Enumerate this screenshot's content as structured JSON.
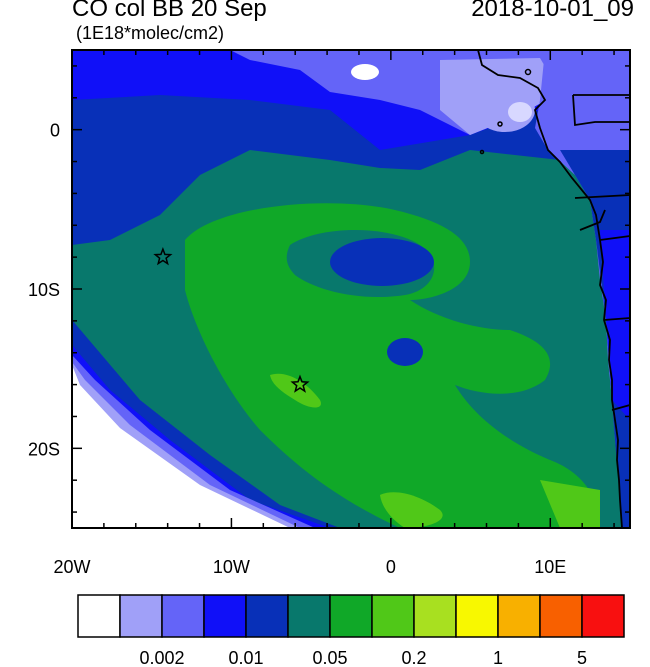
{
  "header": {
    "title": "CO col BB 20 Sep",
    "units": "(1E18*molec/cm2)",
    "timestamp": "2018-10-01_09"
  },
  "map": {
    "lon_range": [
      -20,
      15
    ],
    "lat_range": [
      -25,
      5
    ],
    "x_ticks": [
      {
        "lon": -20,
        "label": "20W"
      },
      {
        "lon": -10,
        "label": "10W"
      },
      {
        "lon": 0,
        "label": "0"
      },
      {
        "lon": 10,
        "label": "10E"
      }
    ],
    "y_ticks": [
      {
        "lat": 0,
        "label": "0"
      },
      {
        "lat": -10,
        "label": "10S"
      },
      {
        "lat": -20,
        "label": "20S"
      }
    ],
    "markers": [
      {
        "type": "star",
        "lon": -14.3,
        "lat": -8.0
      },
      {
        "type": "star",
        "lon": -5.7,
        "lat": -16.0
      }
    ]
  },
  "colorbar": {
    "colors": [
      "#ffffff",
      "#a0a0f8",
      "#6464f8",
      "#1010f8",
      "#0830b8",
      "#08786c",
      "#10a828",
      "#50c818",
      "#a8e020",
      "#f8f800",
      "#f8b000",
      "#f86000",
      "#f81010"
    ],
    "labels": [
      {
        "boundary": 2,
        "text": "0.002"
      },
      {
        "boundary": 4,
        "text": "0.01"
      },
      {
        "boundary": 6,
        "text": "0.05"
      },
      {
        "boundary": 8,
        "text": "0.2"
      },
      {
        "boundary": 10,
        "text": "1"
      },
      {
        "boundary": 12,
        "text": "5"
      }
    ]
  }
}
